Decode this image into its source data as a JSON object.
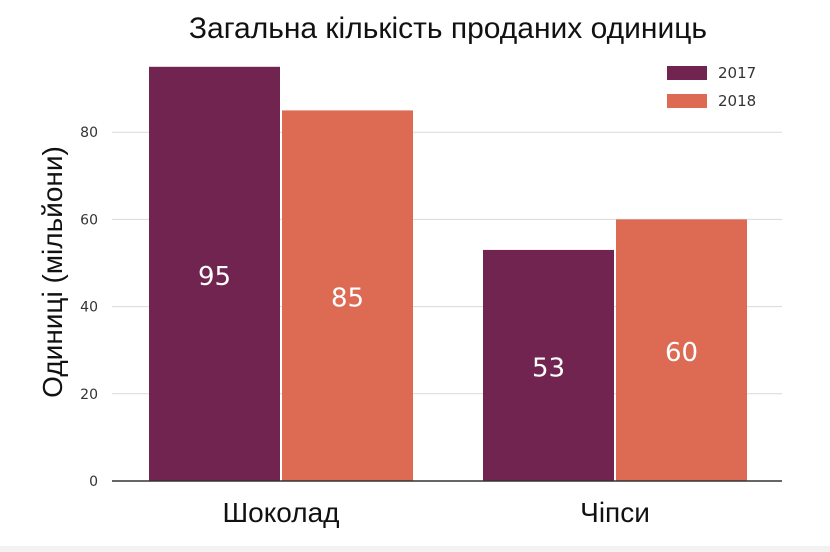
{
  "chart_data": {
    "type": "bar",
    "title": "Загальна кількість проданих одиниць",
    "xlabel": "",
    "ylabel": "Одиниці (мільйони)",
    "categories": [
      "Шоколад",
      "Чіпси"
    ],
    "series": [
      {
        "name": "2017",
        "values": [
          95,
          53
        ],
        "color": "#71244f"
      },
      {
        "name": "2018",
        "values": [
          85,
          60
        ],
        "color": "#dd6a53"
      }
    ],
    "yticks": [
      0,
      20,
      40,
      60,
      80
    ],
    "ylim": [
      0,
      100
    ],
    "grid": true,
    "legend": "top-right"
  }
}
